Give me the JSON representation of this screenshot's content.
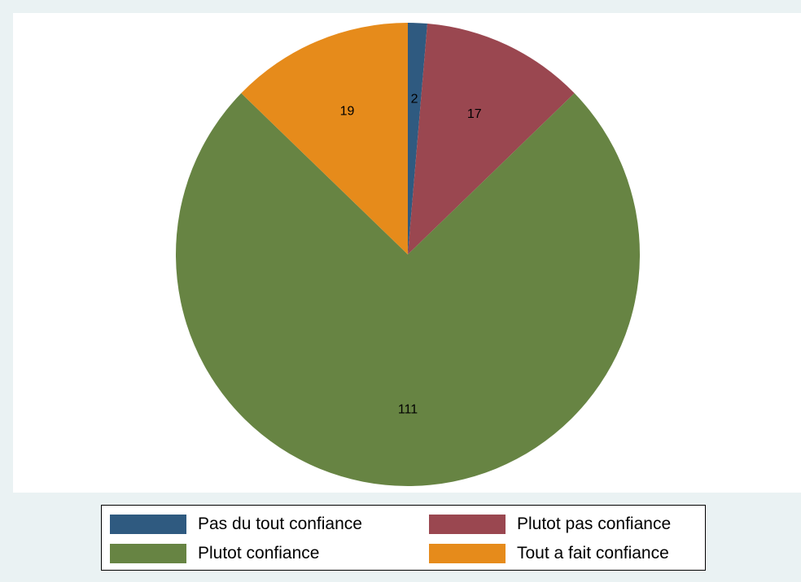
{
  "chart_data": {
    "type": "pie",
    "slices": [
      {
        "label": "Pas du tout confiance",
        "value": 2,
        "value_label": "2",
        "color": "#2f5a80"
      },
      {
        "label": "Plutot pas confiance",
        "value": 17,
        "value_label": "17",
        "color": "#9a4750"
      },
      {
        "label": "Plutot confiance",
        "value": 111,
        "value_label": "111",
        "color": "#678443"
      },
      {
        "label": "Tout a fait confiance",
        "value": 19,
        "value_label": "19",
        "color": "#e68b1b"
      }
    ],
    "start_angle": "12 o'clock",
    "direction": "clockwise",
    "legend_position": "bottom"
  }
}
